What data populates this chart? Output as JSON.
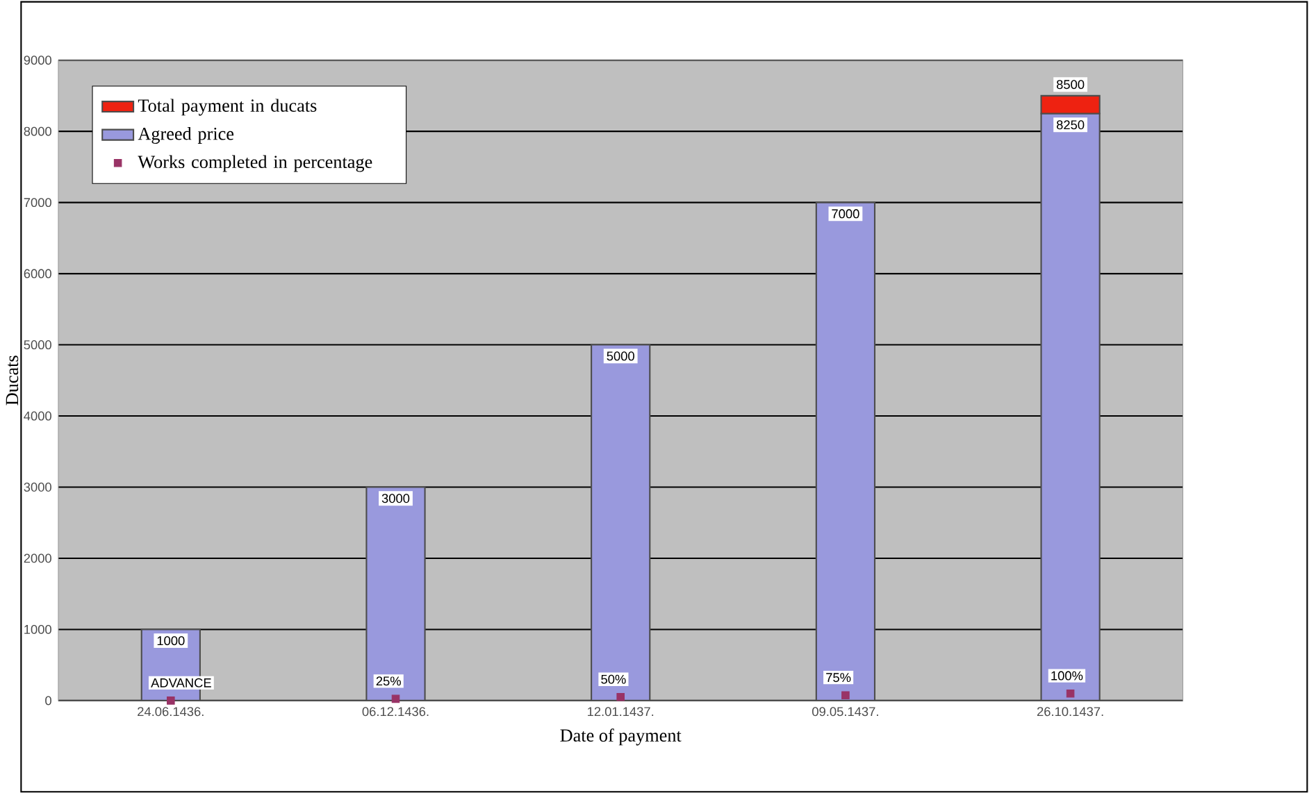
{
  "chart_data": {
    "type": "bar",
    "stacked": true,
    "xlabel": "Date of payment",
    "ylabel": "Ducats",
    "categories": [
      "24.06.1436.",
      "06.12.1436.",
      "12.01.1437.",
      "09.05.1437.",
      "26.10.1437."
    ],
    "series": [
      {
        "name": "Works completed in percentage",
        "type": "scatter",
        "color": "#993366",
        "values": [
          0,
          25,
          50,
          75,
          100
        ],
        "value_labels": [
          "ADVANCE",
          "25%",
          "50%",
          "75%",
          "100%"
        ]
      },
      {
        "name": "Agreed price",
        "color": "#9999dd",
        "values": [
          1000,
          3000,
          5000,
          7000,
          8250
        ],
        "value_labels": [
          "1000",
          "3000",
          "5000",
          "7000",
          "8250"
        ]
      },
      {
        "name": "Total payment in ducats",
        "color": "#ee2211",
        "values": [
          null,
          null,
          null,
          null,
          250
        ]
      }
    ],
    "totals": [
      null,
      null,
      null,
      null,
      "8500"
    ],
    "ylim": [
      0,
      9000
    ],
    "yticks": [
      0,
      1000,
      2000,
      3000,
      4000,
      5000,
      6000,
      7000,
      8000,
      9000
    ],
    "grid": "y",
    "legend": "top left",
    "marker": "square"
  }
}
